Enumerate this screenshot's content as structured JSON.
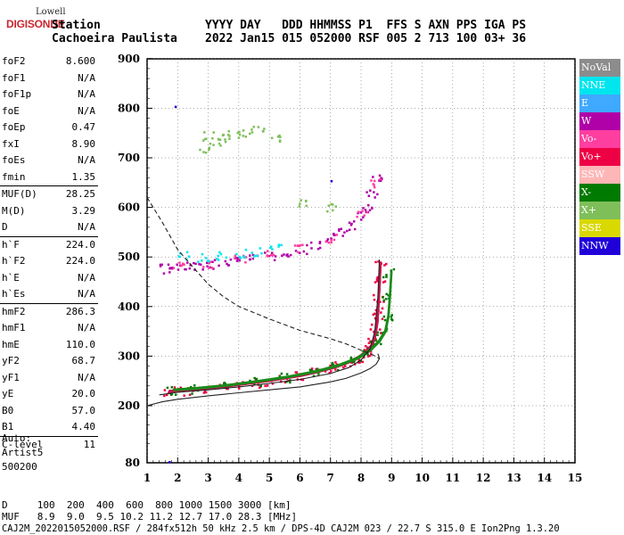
{
  "logo": {
    "line1": "Lowell",
    "line2": "DIGISONDE"
  },
  "header": {
    "row1_left": "Station",
    "row2_left": "Cachoeira Paulista",
    "row1_right": "YYYY DAY   DDD HHMMSS P1  FFS S AXN PPS IGA PS",
    "row2_right": "2022 Jan15 015 052000 RSF 005 2 713 100 03+ 36"
  },
  "params": [
    {
      "name": "foF2",
      "value": "8.600"
    },
    {
      "name": "foF1",
      "value": "N/A"
    },
    {
      "name": "foF1p",
      "value": "N/A"
    },
    {
      "name": "foE",
      "value": "N/A"
    },
    {
      "name": "foEp",
      "value": "0.47"
    },
    {
      "name": "fxI",
      "value": "8.90"
    },
    {
      "name": "foEs",
      "value": "N/A"
    },
    {
      "name": "fmin",
      "value": "1.35"
    },
    {
      "name": "MUF(D)",
      "value": "28.25",
      "sep": true
    },
    {
      "name": "M(D)",
      "value": "3.29"
    },
    {
      "name": "D",
      "value": "N/A"
    },
    {
      "name": "h`F",
      "value": "224.0",
      "sep": true
    },
    {
      "name": "h`F2",
      "value": "224.0"
    },
    {
      "name": "h`E",
      "value": "N/A"
    },
    {
      "name": "h`Es",
      "value": "N/A"
    },
    {
      "name": "hmF2",
      "value": "286.3",
      "sep": true
    },
    {
      "name": "hmF1",
      "value": "N/A"
    },
    {
      "name": "hmE",
      "value": "110.0"
    },
    {
      "name": "yF2",
      "value": "68.7"
    },
    {
      "name": "yF1",
      "value": "N/A"
    },
    {
      "name": "yE",
      "value": "20.0"
    },
    {
      "name": "B0",
      "value": "57.0"
    },
    {
      "name": "B1",
      "value": "4.40"
    },
    {
      "name": "C-level",
      "value": "11",
      "sep": true
    }
  ],
  "auto": {
    "line1": "Auto:",
    "line2": "Artist5",
    "line3": "500200"
  },
  "legend": [
    {
      "label": "NoVal",
      "color": "#8c8c8c"
    },
    {
      "label": "NNE",
      "color": "#00e5ee"
    },
    {
      "label": "E",
      "color": "#3fa9ff"
    },
    {
      "label": "W",
      "color": "#b000a8"
    },
    {
      "label": "Vo-",
      "color": "#ff3fa0"
    },
    {
      "label": "Vo+",
      "color": "#ee0044"
    },
    {
      "label": "SSW",
      "color": "#ffb6b6"
    },
    {
      "label": "X-",
      "color": "#007a00"
    },
    {
      "label": "X+",
      "color": "#7fbf5a"
    },
    {
      "label": "SSE",
      "color": "#d9d900"
    },
    {
      "label": "NNW",
      "color": "#2000d9"
    }
  ],
  "footer": {
    "line1": "D     100  200  400  600  800 1000 1500 3000 [km]",
    "line2": "MUF   8.9  9.0  9.5 10.2 11.2 12.7 17.0 28.3 [MHz]",
    "line3": "CAJ2M_2022015052000.RSF / 284fx512h 50 kHz 2.5 km / DPS-4D CAJ2M 023 / 22.7 S 315.0 E Ion2Png 1.3.20"
  },
  "chart_data": {
    "type": "scatter",
    "x_ticks": [
      "1",
      "2",
      "3",
      "4",
      "5",
      "6",
      "7",
      "8",
      "9",
      "10",
      "11",
      "12",
      "13",
      "14",
      "15"
    ],
    "y_ticks": [
      "80",
      "200",
      "300",
      "400",
      "500",
      "600",
      "700",
      "800",
      "900"
    ],
    "xlim": [
      1,
      15
    ],
    "ylim": [
      80,
      900
    ],
    "x_unit": "MHz",
    "y_unit": "km",
    "grid": true,
    "series": [
      {
        "name": "Vo+",
        "color": "#ee0044",
        "x": [
          1.7,
          2,
          2.5,
          3,
          3.5,
          4,
          4.5,
          5,
          5.5,
          6,
          6.5,
          7,
          7.3,
          7.6,
          7.9,
          8.1,
          8.3,
          8.4,
          8.45,
          8.5,
          8.52,
          8.55,
          8.58,
          8.6
        ],
        "y": [
          229,
          231,
          233,
          236,
          239,
          243,
          247,
          251,
          256,
          261,
          268,
          276,
          282,
          289,
          298,
          307,
          320,
          335,
          350,
          370,
          390,
          420,
          455,
          490
        ]
      },
      {
        "name": "X-",
        "color": "#007a00",
        "x": [
          1.8,
          2.5,
          3.5,
          4.5,
          5.5,
          6.5,
          7.2,
          7.8,
          8.2,
          8.5,
          8.7,
          8.8,
          8.85,
          8.9
        ],
        "y": [
          232,
          235,
          241,
          249,
          258,
          270,
          282,
          296,
          312,
          330,
          350,
          380,
          420,
          470
        ]
      },
      {
        "name": "W",
        "color": "#b000a8",
        "x": [
          1.6,
          1.9,
          2.2,
          2.6,
          3,
          3.5,
          4,
          4.5,
          5,
          5.5,
          6,
          6.5,
          7,
          7.4,
          7.7,
          8,
          8.2,
          8.35,
          8.5
        ],
        "y": [
          478,
          480,
          482,
          484,
          487,
          490,
          494,
          499,
          504,
          510,
          517,
          526,
          540,
          552,
          565,
          585,
          605,
          630,
          660
        ]
      },
      {
        "name": "Vo-",
        "color": "#ff3fa0",
        "x": [
          2,
          3,
          4,
          5,
          6,
          7,
          8,
          8.4
        ],
        "y": [
          485,
          488,
          496,
          506,
          520,
          540,
          590,
          650
        ]
      },
      {
        "name": "NNE",
        "color": "#00e5ee",
        "x": [
          2.2,
          2.8,
          3.4,
          4,
          4.6,
          5.2
        ],
        "y": [
          505,
          500,
          503,
          508,
          512,
          518
        ]
      },
      {
        "name": "X+",
        "color": "#7fbf5a",
        "x": [
          2.8,
          3,
          3.2,
          3.5,
          3.8,
          4.2,
          4.6,
          5.2,
          6,
          7
        ],
        "y": [
          720,
          745,
          735,
          740,
          748,
          752,
          760,
          740,
          610,
          600
        ]
      },
      {
        "name": "NNW",
        "color": "#2000d9",
        "x": [
          1.9,
          7,
          1.7
        ],
        "y": [
          805,
          655,
          80
        ]
      }
    ],
    "profile_curve": {
      "x": [
        1,
        1.5,
        2,
        3,
        4,
        5,
        6,
        7,
        7.5,
        8,
        8.3,
        8.5,
        8.6,
        8.55
      ],
      "y": [
        200,
        208,
        213,
        220,
        226,
        232,
        238,
        248,
        255,
        266,
        275,
        284,
        295,
        305
      ]
    },
    "trace_black": {
      "x": [
        1.4,
        2,
        3,
        4,
        5,
        6,
        7,
        7.6,
        8,
        8.3,
        8.45,
        8.55,
        8.6
      ],
      "y": [
        222,
        227,
        232,
        238,
        245,
        253,
        265,
        277,
        292,
        315,
        350,
        420,
        495
      ]
    },
    "dashed_curve": {
      "x": [
        1,
        1.5,
        2,
        2.5,
        3,
        3.5,
        4,
        5,
        6,
        7,
        7.5,
        8,
        8.4,
        8.6
      ],
      "y": [
        620,
        570,
        515,
        480,
        445,
        420,
        400,
        375,
        352,
        335,
        325,
        312,
        302,
        295
      ]
    }
  }
}
